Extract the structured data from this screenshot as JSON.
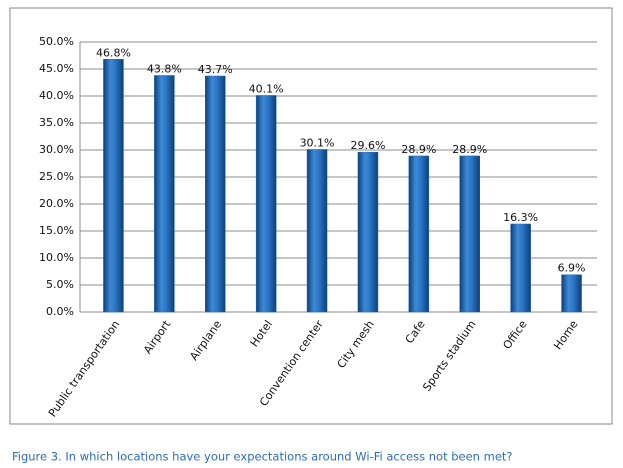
{
  "chart_data": {
    "type": "bar",
    "categories": [
      "Public transportation",
      "Airport",
      "Airplane",
      "Hotel",
      "Convention center",
      "City mesh",
      "Cafe",
      "Sports stadium",
      "Office",
      "Home"
    ],
    "values": [
      46.8,
      43.8,
      43.7,
      40.1,
      30.1,
      29.6,
      28.9,
      28.9,
      16.3,
      6.9
    ],
    "value_labels": [
      "46.8%",
      "43.8%",
      "43.7%",
      "40.1%",
      "30.1%",
      "29.6%",
      "28.9%",
      "28.9%",
      "16.3%",
      "6.9%"
    ],
    "color": "#1f67b1",
    "ylim": [
      0,
      50
    ],
    "yticks": [
      {
        "value": 0,
        "label": "0.0%"
      },
      {
        "value": 5,
        "label": "5.0%"
      },
      {
        "value": 10,
        "label": "10.0%"
      },
      {
        "value": 15,
        "label": "15.0%"
      },
      {
        "value": 20,
        "label": "20.0%"
      },
      {
        "value": 25,
        "label": "25.0%"
      },
      {
        "value": 30,
        "label": "30.0%"
      },
      {
        "value": 35,
        "label": "35.0%"
      },
      {
        "value": 40,
        "label": "40.0%"
      },
      {
        "value": 45,
        "label": "45.0%"
      },
      {
        "value": 50,
        "label": "50.0%"
      }
    ],
    "grid": true,
    "caption": "Figure 3. In which locations have your expectations around Wi-Fi access not been met?"
  }
}
